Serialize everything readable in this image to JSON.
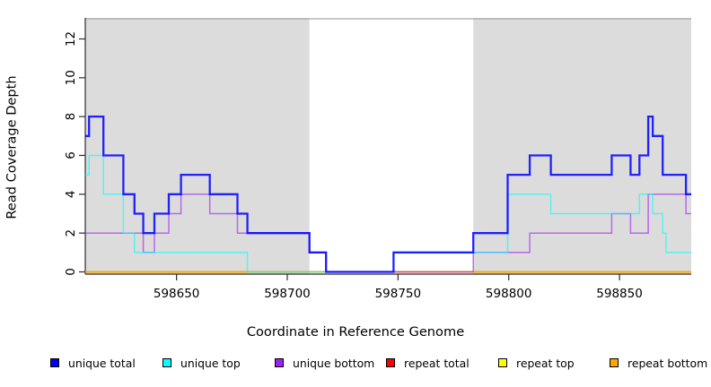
{
  "chart_data": {
    "type": "line",
    "subtype": "step-coverage",
    "title": "",
    "xlabel": "Coordinate in Reference Genome",
    "ylabel": "Read Coverage Depth",
    "xlim": [
      598608.8,
      598882.4
    ],
    "ylim": [
      0,
      13.1
    ],
    "x_ticks": [
      598650,
      598700,
      598750,
      598800,
      598850
    ],
    "y_ticks": [
      0,
      2,
      4,
      6,
      8,
      10,
      12
    ],
    "grid": false,
    "legend_position": "bottom",
    "plot_bg_color": "#ffffff",
    "shaded_region_color": "#DCDCDC",
    "shaded_region_top_border": "#A8A8A8",
    "axis_color": "#2b2b2b",
    "shaded_regions": [
      {
        "x0": 598608.8,
        "x1": 598710
      },
      {
        "x0": 598784,
        "x1": 598882.4
      }
    ],
    "draw_order": [
      "repeat total",
      "repeat top",
      "repeat bottom",
      "unique bottom",
      "unique top",
      "unique total"
    ],
    "series": [
      {
        "name": "unique total",
        "color": "#0000FF",
        "opacity": 0.85,
        "width": 2.3,
        "steps": [
          [
            598608.8,
            7
          ],
          [
            598610.5,
            8
          ],
          [
            598617,
            6
          ],
          [
            598626,
            4
          ],
          [
            598631,
            3
          ],
          [
            598635,
            2
          ],
          [
            598640,
            3
          ],
          [
            598646.5,
            4
          ],
          [
            598652,
            5
          ],
          [
            598665,
            4
          ],
          [
            598677.5,
            3
          ],
          [
            598682,
            2
          ],
          [
            598710,
            1
          ],
          [
            598717.5,
            0
          ],
          [
            598748,
            1
          ],
          [
            598784,
            2
          ],
          [
            598799.5,
            5
          ],
          [
            598809.5,
            6
          ],
          [
            598819,
            5
          ],
          [
            598846.5,
            6
          ],
          [
            598855,
            5
          ],
          [
            598859,
            6
          ],
          [
            598863,
            8
          ],
          [
            598865,
            7
          ],
          [
            598869.5,
            5
          ],
          [
            598880,
            4
          ]
        ]
      },
      {
        "name": "unique top",
        "color": "#00FFFF",
        "opacity": 0.6,
        "width": 1.5,
        "steps": [
          [
            598608.8,
            5
          ],
          [
            598610.5,
            6
          ],
          [
            598617,
            4
          ],
          [
            598626,
            2
          ],
          [
            598631,
            1
          ],
          [
            598682,
            0
          ],
          [
            598748,
            1
          ],
          [
            598799.5,
            4
          ],
          [
            598819,
            3
          ],
          [
            598859,
            4
          ],
          [
            598865,
            3
          ],
          [
            598869.5,
            2
          ],
          [
            598871,
            1
          ]
        ]
      },
      {
        "name": "unique bottom",
        "color": "#A020F0",
        "opacity": 0.62,
        "width": 1.5,
        "steps": [
          [
            598608.8,
            2
          ],
          [
            598635,
            1
          ],
          [
            598640,
            2
          ],
          [
            598646.5,
            3
          ],
          [
            598652,
            4
          ],
          [
            598665,
            3
          ],
          [
            598677.5,
            2
          ],
          [
            598710,
            1
          ],
          [
            598717.5,
            0
          ],
          [
            598784,
            1
          ],
          [
            598809.5,
            2
          ],
          [
            598846.5,
            3
          ],
          [
            598855,
            2
          ],
          [
            598863,
            4
          ],
          [
            598880,
            3
          ]
        ]
      },
      {
        "name": "repeat total",
        "color": "#FF0000",
        "opacity": 1,
        "width": 1.4,
        "steps": [
          [
            598608.8,
            0
          ]
        ]
      },
      {
        "name": "repeat top",
        "color": "#FFFF00",
        "opacity": 1,
        "width": 1.4,
        "steps": [
          [
            598608.8,
            0
          ]
        ]
      },
      {
        "name": "repeat bottom",
        "color": "#FFA500",
        "opacity": 1,
        "width": 1.8,
        "steps": [
          [
            598608.8,
            0
          ]
        ]
      }
    ]
  },
  "legend": {
    "items": [
      {
        "label": "unique total",
        "color": "#0000FF"
      },
      {
        "label": "unique top",
        "color": "#00FFFF"
      },
      {
        "label": "unique bottom",
        "color": "#A020F0"
      },
      {
        "label": "repeat total",
        "color": "#FF0000"
      },
      {
        "label": "repeat top",
        "color": "#FFFF00"
      },
      {
        "label": "repeat bottom",
        "color": "#FFA500"
      }
    ]
  }
}
